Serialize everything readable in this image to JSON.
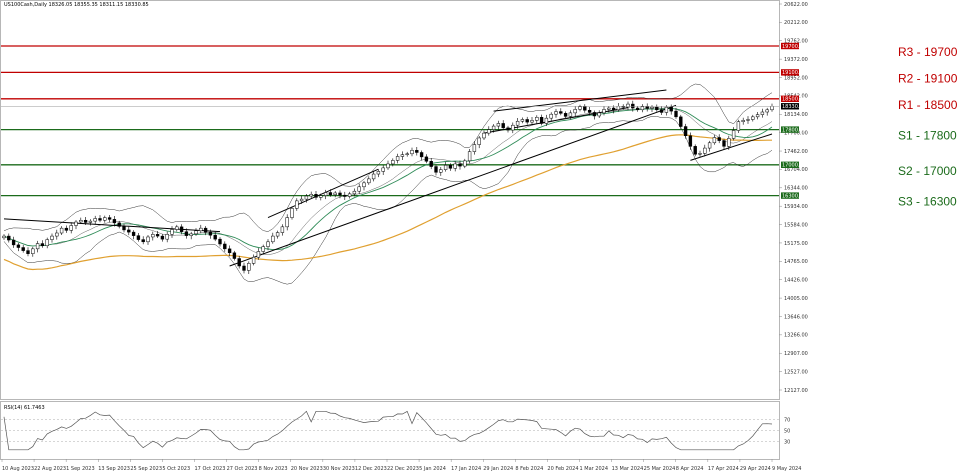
{
  "header": {
    "symbol_line": "US100Cash,Daily  18326.05 18355.35 18311.15 18330.85"
  },
  "rsi_header": "RSI(14) 61.7463",
  "colors": {
    "resistance": "#c00000",
    "support": "#1b6b1b",
    "ma_fast": "#2e8b57",
    "ma_slow": "#e0a030",
    "bollinger": "#333333",
    "candle_up": "#000000",
    "candle_down": "#000000"
  },
  "levels": [
    {
      "name": "R3",
      "value": 19700,
      "text": "R3 - 19700",
      "kind": "resistance",
      "tag": "19700.00"
    },
    {
      "name": "R2",
      "value": 19100,
      "text": "R2 - 19100",
      "kind": "resistance",
      "tag": "19100.00"
    },
    {
      "name": "R1",
      "value": 18500,
      "text": "R1 - 18500",
      "kind": "resistance",
      "tag": "18500.00"
    },
    {
      "name": "S1",
      "value": 17800,
      "text": "S1 - 17800",
      "kind": "support",
      "tag": "17800.00"
    },
    {
      "name": "S2",
      "value": 17000,
      "text": "S2 - 17000",
      "kind": "support",
      "tag": "17000.00"
    },
    {
      "name": "S3",
      "value": 16300,
      "text": "S3 - 16300",
      "kind": "support",
      "tag": "16300.00"
    }
  ],
  "current_price_tag": "18330.85",
  "chart_data": {
    "type": "candlestick",
    "ylim": [
      11700,
      20700
    ],
    "y_ticks": [
      "20622.00",
      "20212.00",
      "19762.00",
      "19372.00",
      "18952.00",
      "18542.00",
      "18134.00",
      "17700.00",
      "17462.00",
      "16704.00",
      "16344.00",
      "15934.00",
      "15584.00",
      "15175.00",
      "14765.00",
      "14426.00",
      "14005.00",
      "13646.00",
      "13266.00",
      "12907.00",
      "12527.00",
      "12127.00"
    ],
    "x_labels": [
      "10 Aug 2023",
      "22 Aug 2023",
      "1 Sep 2023",
      "13 Sep 2023",
      "25 Sep 2023",
      "5 Oct 2023",
      "17 Oct 2023",
      "27 Oct 2023",
      "8 Nov 2023",
      "20 Nov 2023",
      "30 Nov 2023",
      "12 Dec 2023",
      "22 Dec 2023",
      "5 Jan 2024",
      "17 Jan 2024",
      "29 Jan 2024",
      "8 Feb 2024",
      "20 Feb 2024",
      "1 Mar 2024",
      "13 Mar 2024",
      "25 Mar 2024",
      "8 Apr 2024",
      "17 Apr 2024",
      "29 Apr 2024",
      "9 May 2024"
    ],
    "closes": [
      15380,
      15290,
      15180,
      15120,
      15050,
      14980,
      15090,
      15210,
      15160,
      15300,
      15380,
      15450,
      15560,
      15510,
      15620,
      15700,
      15740,
      15690,
      15720,
      15780,
      15740,
      15800,
      15760,
      15680,
      15600,
      15520,
      15470,
      15390,
      15300,
      15250,
      15360,
      15420,
      15380,
      15310,
      15420,
      15530,
      15590,
      15480,
      15390,
      15430,
      15500,
      15560,
      15470,
      15400,
      15310,
      15200,
      15090,
      15000,
      14870,
      14700,
      14600,
      14760,
      14900,
      15030,
      15140,
      15250,
      15380,
      15460,
      15590,
      15800,
      16010,
      16180,
      16220,
      16290,
      16330,
      16260,
      16300,
      16370,
      16320,
      16360,
      16310,
      16280,
      16340,
      16400,
      16500,
      16590,
      16680,
      16790,
      16850,
      16930,
      17020,
      17100,
      17190,
      17230,
      17250,
      17330,
      17280,
      17180,
      17080,
      16960,
      16830,
      16890,
      16990,
      16920,
      17020,
      16970,
      17090,
      17300,
      17460,
      17610,
      17720,
      17800,
      17880,
      17940,
      17840,
      17790,
      17900,
      17990,
      18030,
      17970,
      18010,
      18080,
      17940,
      18060,
      18150,
      18210,
      18170,
      18100,
      18180,
      18260,
      18320,
      18240,
      18190,
      18110,
      18180,
      18260,
      18290,
      18250,
      18330,
      18310,
      18380,
      18290,
      18250,
      18320,
      18280,
      18310,
      18250,
      18190,
      18310,
      18220,
      18090,
      17870,
      17660,
      17420,
      17240,
      17260,
      17380,
      17500,
      17620,
      17550,
      17420,
      17600,
      17780,
      17980,
      18010,
      18030,
      18090,
      18140,
      18200,
      18250,
      18330
    ],
    "ma_fast": {
      "start": 15250,
      "end": 17880
    },
    "ma_slow": {
      "start": 14850,
      "end": 17560
    },
    "rsi": {
      "levels": [
        70,
        50,
        30
      ],
      "last": 61.7463
    }
  }
}
